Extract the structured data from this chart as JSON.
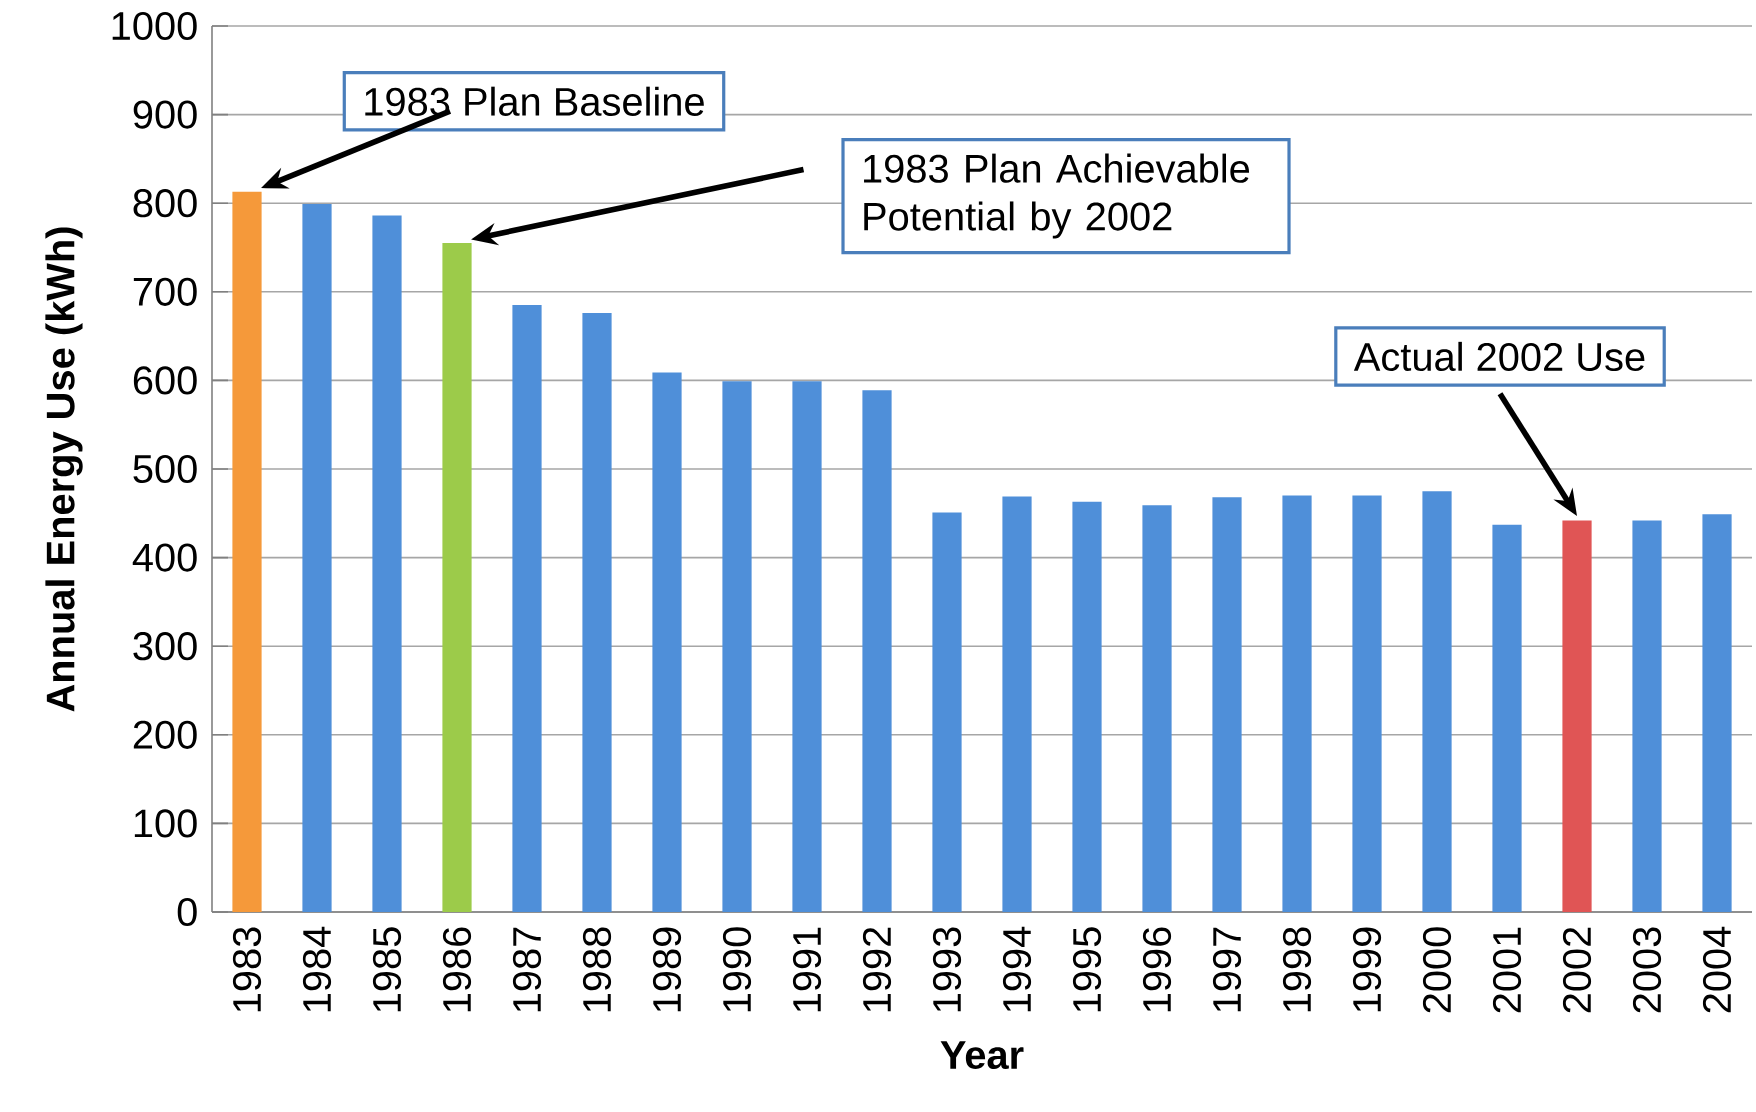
{
  "chart_data": {
    "type": "bar",
    "xlabel": "Year",
    "ylabel": "Annual Energy Use (kWh)",
    "categories": [
      "1983",
      "1984",
      "1985",
      "1986",
      "1987",
      "1988",
      "1989",
      "1990",
      "1991",
      "1992",
      "1993",
      "1994",
      "1995",
      "1996",
      "1997",
      "1998",
      "1999",
      "2000",
      "2001",
      "2002",
      "2003",
      "2004"
    ],
    "values": [
      813,
      799,
      786,
      755,
      685,
      676,
      609,
      599,
      599,
      589,
      451,
      469,
      463,
      459,
      468,
      470,
      470,
      475,
      437,
      442,
      442,
      449
    ],
    "colors": [
      "#f5993a",
      "#4f8fd9",
      "#4f8fd9",
      "#9ccb4a",
      "#4f8fd9",
      "#4f8fd9",
      "#4f8fd9",
      "#4f8fd9",
      "#4f8fd9",
      "#4f8fd9",
      "#4f8fd9",
      "#4f8fd9",
      "#4f8fd9",
      "#4f8fd9",
      "#4f8fd9",
      "#4f8fd9",
      "#4f8fd9",
      "#4f8fd9",
      "#4f8fd9",
      "#e05555",
      "#4f8fd9",
      "#4f8fd9"
    ],
    "ylim": [
      0,
      1000
    ],
    "yticks": [
      0,
      100,
      200,
      300,
      400,
      500,
      600,
      700,
      800,
      900,
      1000
    ],
    "grid": "y",
    "annotations": [
      "1983 Plan Baseline",
      "1983 Plan Achievable Potential by 2002",
      "Actual 2002 Use"
    ]
  }
}
